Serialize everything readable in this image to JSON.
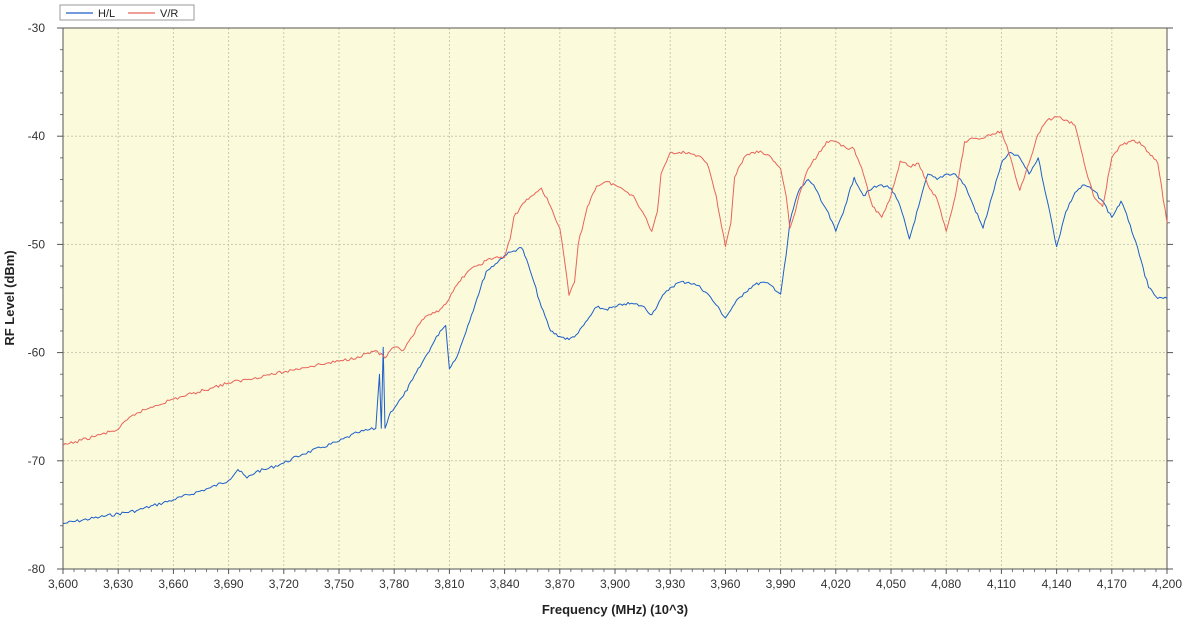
{
  "chart_data": {
    "type": "line",
    "xlabel": "Frequency (MHz) (10^3)",
    "ylabel": "RF Level (dBm)",
    "xlim": [
      3600,
      4200
    ],
    "ylim": [
      -80,
      -30
    ],
    "x_ticks": [
      "3,600",
      "3,630",
      "3,660",
      "3,690",
      "3,720",
      "3,750",
      "3,780",
      "3,810",
      "3,840",
      "3,870",
      "3,900",
      "3,930",
      "3,960",
      "3,990",
      "4,020",
      "4,050",
      "4,080",
      "4,110",
      "4,140",
      "4,170",
      "4,200"
    ],
    "y_ticks": [
      "-30",
      "-40",
      "-50",
      "-60",
      "-70",
      "-80"
    ],
    "grid": true,
    "background": "#fbfbdc",
    "legend_position": "top-left",
    "series": [
      {
        "name": "H/L",
        "color": "#1f5fc8",
        "x": [
          3600,
          3620,
          3640,
          3660,
          3680,
          3690,
          3695,
          3700,
          3705,
          3710,
          3720,
          3730,
          3740,
          3750,
          3760,
          3770,
          3772,
          3773,
          3774,
          3775,
          3778,
          3785,
          3790,
          3795,
          3800,
          3805,
          3808,
          3810,
          3815,
          3820,
          3825,
          3830,
          3835,
          3840,
          3845,
          3848,
          3850,
          3855,
          3860,
          3865,
          3870,
          3875,
          3880,
          3885,
          3890,
          3895,
          3900,
          3905,
          3910,
          3915,
          3920,
          3925,
          3930,
          3935,
          3940,
          3945,
          3950,
          3955,
          3960,
          3965,
          3970,
          3975,
          3980,
          3985,
          3990,
          3993,
          3995,
          3998,
          4000,
          4005,
          4008,
          4012,
          4015,
          4020,
          4025,
          4030,
          4035,
          4040,
          4045,
          4050,
          4055,
          4060,
          4065,
          4070,
          4075,
          4080,
          4085,
          4090,
          4095,
          4100,
          4105,
          4110,
          4115,
          4120,
          4125,
          4130,
          4135,
          4140,
          4145,
          4150,
          4155,
          4160,
          4165,
          4170,
          4175,
          4180,
          4185,
          4190,
          4195,
          4200
        ],
        "values": [
          -75.8,
          -75.2,
          -74.6,
          -73.6,
          -72.5,
          -71.8,
          -70.8,
          -71.6,
          -71.0,
          -70.8,
          -70.2,
          -69.4,
          -68.8,
          -68.2,
          -67.4,
          -67.0,
          -62.0,
          -67.0,
          -59.5,
          -67.0,
          -65.5,
          -64.0,
          -62.5,
          -61.0,
          -59.5,
          -58.0,
          -57.5,
          -61.5,
          -60.0,
          -57.5,
          -55.0,
          -52.5,
          -51.8,
          -51.0,
          -50.6,
          -50.3,
          -50.5,
          -53.0,
          -55.8,
          -58.0,
          -58.5,
          -58.8,
          -58.2,
          -57.0,
          -55.8,
          -56.0,
          -55.8,
          -55.5,
          -55.5,
          -55.7,
          -56.5,
          -55.0,
          -54.0,
          -53.5,
          -53.5,
          -53.8,
          -54.5,
          -55.6,
          -56.8,
          -55.5,
          -54.5,
          -53.8,
          -53.5,
          -53.8,
          -54.6,
          -51.0,
          -48.0,
          -46.0,
          -45.0,
          -44.0,
          -44.5,
          -46.0,
          -46.8,
          -48.8,
          -46.5,
          -43.8,
          -45.5,
          -44.8,
          -44.5,
          -44.8,
          -46.5,
          -49.5,
          -46.5,
          -43.5,
          -44.0,
          -43.5,
          -43.5,
          -44.5,
          -46.5,
          -48.5,
          -45.5,
          -42.5,
          -41.5,
          -42.0,
          -43.5,
          -42.0,
          -46.0,
          -50.2,
          -47.0,
          -45.2,
          -44.5,
          -45.0,
          -46.0,
          -47.5,
          -46.0,
          -48.2,
          -51.0,
          -54.0,
          -55.0,
          -55.0
        ]
      },
      {
        "name": "V/R",
        "color": "#e8645a",
        "x": [
          3600,
          3610,
          3620,
          3630,
          3635,
          3640,
          3650,
          3660,
          3670,
          3680,
          3690,
          3700,
          3710,
          3720,
          3730,
          3740,
          3750,
          3760,
          3770,
          3775,
          3780,
          3785,
          3790,
          3795,
          3800,
          3805,
          3810,
          3815,
          3820,
          3825,
          3830,
          3835,
          3840,
          3843,
          3845,
          3850,
          3855,
          3860,
          3865,
          3870,
          3873,
          3875,
          3878,
          3880,
          3885,
          3890,
          3895,
          3900,
          3905,
          3910,
          3915,
          3920,
          3923,
          3925,
          3930,
          3935,
          3940,
          3945,
          3950,
          3955,
          3960,
          3963,
          3965,
          3970,
          3975,
          3980,
          3985,
          3990,
          3993,
          3995,
          3998,
          4000,
          4005,
          4010,
          4015,
          4020,
          4025,
          4030,
          4035,
          4040,
          4045,
          4050,
          4055,
          4060,
          4065,
          4070,
          4075,
          4080,
          4085,
          4090,
          4095,
          4100,
          4105,
          4110,
          4115,
          4120,
          4125,
          4130,
          4135,
          4140,
          4145,
          4150,
          4155,
          4160,
          4165,
          4170,
          4175,
          4180,
          4185,
          4190,
          4195,
          4200
        ],
        "values": [
          -68.6,
          -68.1,
          -67.6,
          -67.1,
          -66.2,
          -65.6,
          -64.9,
          -64.3,
          -63.8,
          -63.3,
          -62.8,
          -62.5,
          -62.1,
          -61.8,
          -61.4,
          -61.1,
          -60.8,
          -60.4,
          -59.8,
          -60.5,
          -59.5,
          -59.8,
          -58.5,
          -57.0,
          -56.5,
          -56.0,
          -55.0,
          -53.5,
          -52.5,
          -52.0,
          -51.5,
          -51.2,
          -51.2,
          -49.5,
          -47.5,
          -46.2,
          -45.5,
          -44.8,
          -46.5,
          -48.5,
          -52.0,
          -54.7,
          -53.5,
          -50.0,
          -46.5,
          -44.6,
          -44.2,
          -44.5,
          -45.0,
          -45.5,
          -47.0,
          -48.8,
          -47.0,
          -43.5,
          -41.5,
          -41.5,
          -41.5,
          -41.8,
          -42.5,
          -45.5,
          -50.2,
          -48.0,
          -43.8,
          -42.0,
          -41.5,
          -41.5,
          -42.0,
          -43.0,
          -45.5,
          -48.5,
          -47.0,
          -45.5,
          -43.0,
          -41.8,
          -40.5,
          -40.5,
          -41.0,
          -41.2,
          -43.5,
          -46.5,
          -47.5,
          -45.5,
          -42.3,
          -42.8,
          -42.5,
          -44.5,
          -45.8,
          -48.8,
          -45.5,
          -40.5,
          -40.2,
          -40.2,
          -39.8,
          -39.5,
          -42.0,
          -45.0,
          -42.5,
          -39.8,
          -38.5,
          -38.2,
          -38.5,
          -39.0,
          -42.5,
          -45.5,
          -46.5,
          -42.0,
          -40.8,
          -40.5,
          -40.5,
          -41.5,
          -42.5,
          -48.0
        ]
      }
    ]
  }
}
